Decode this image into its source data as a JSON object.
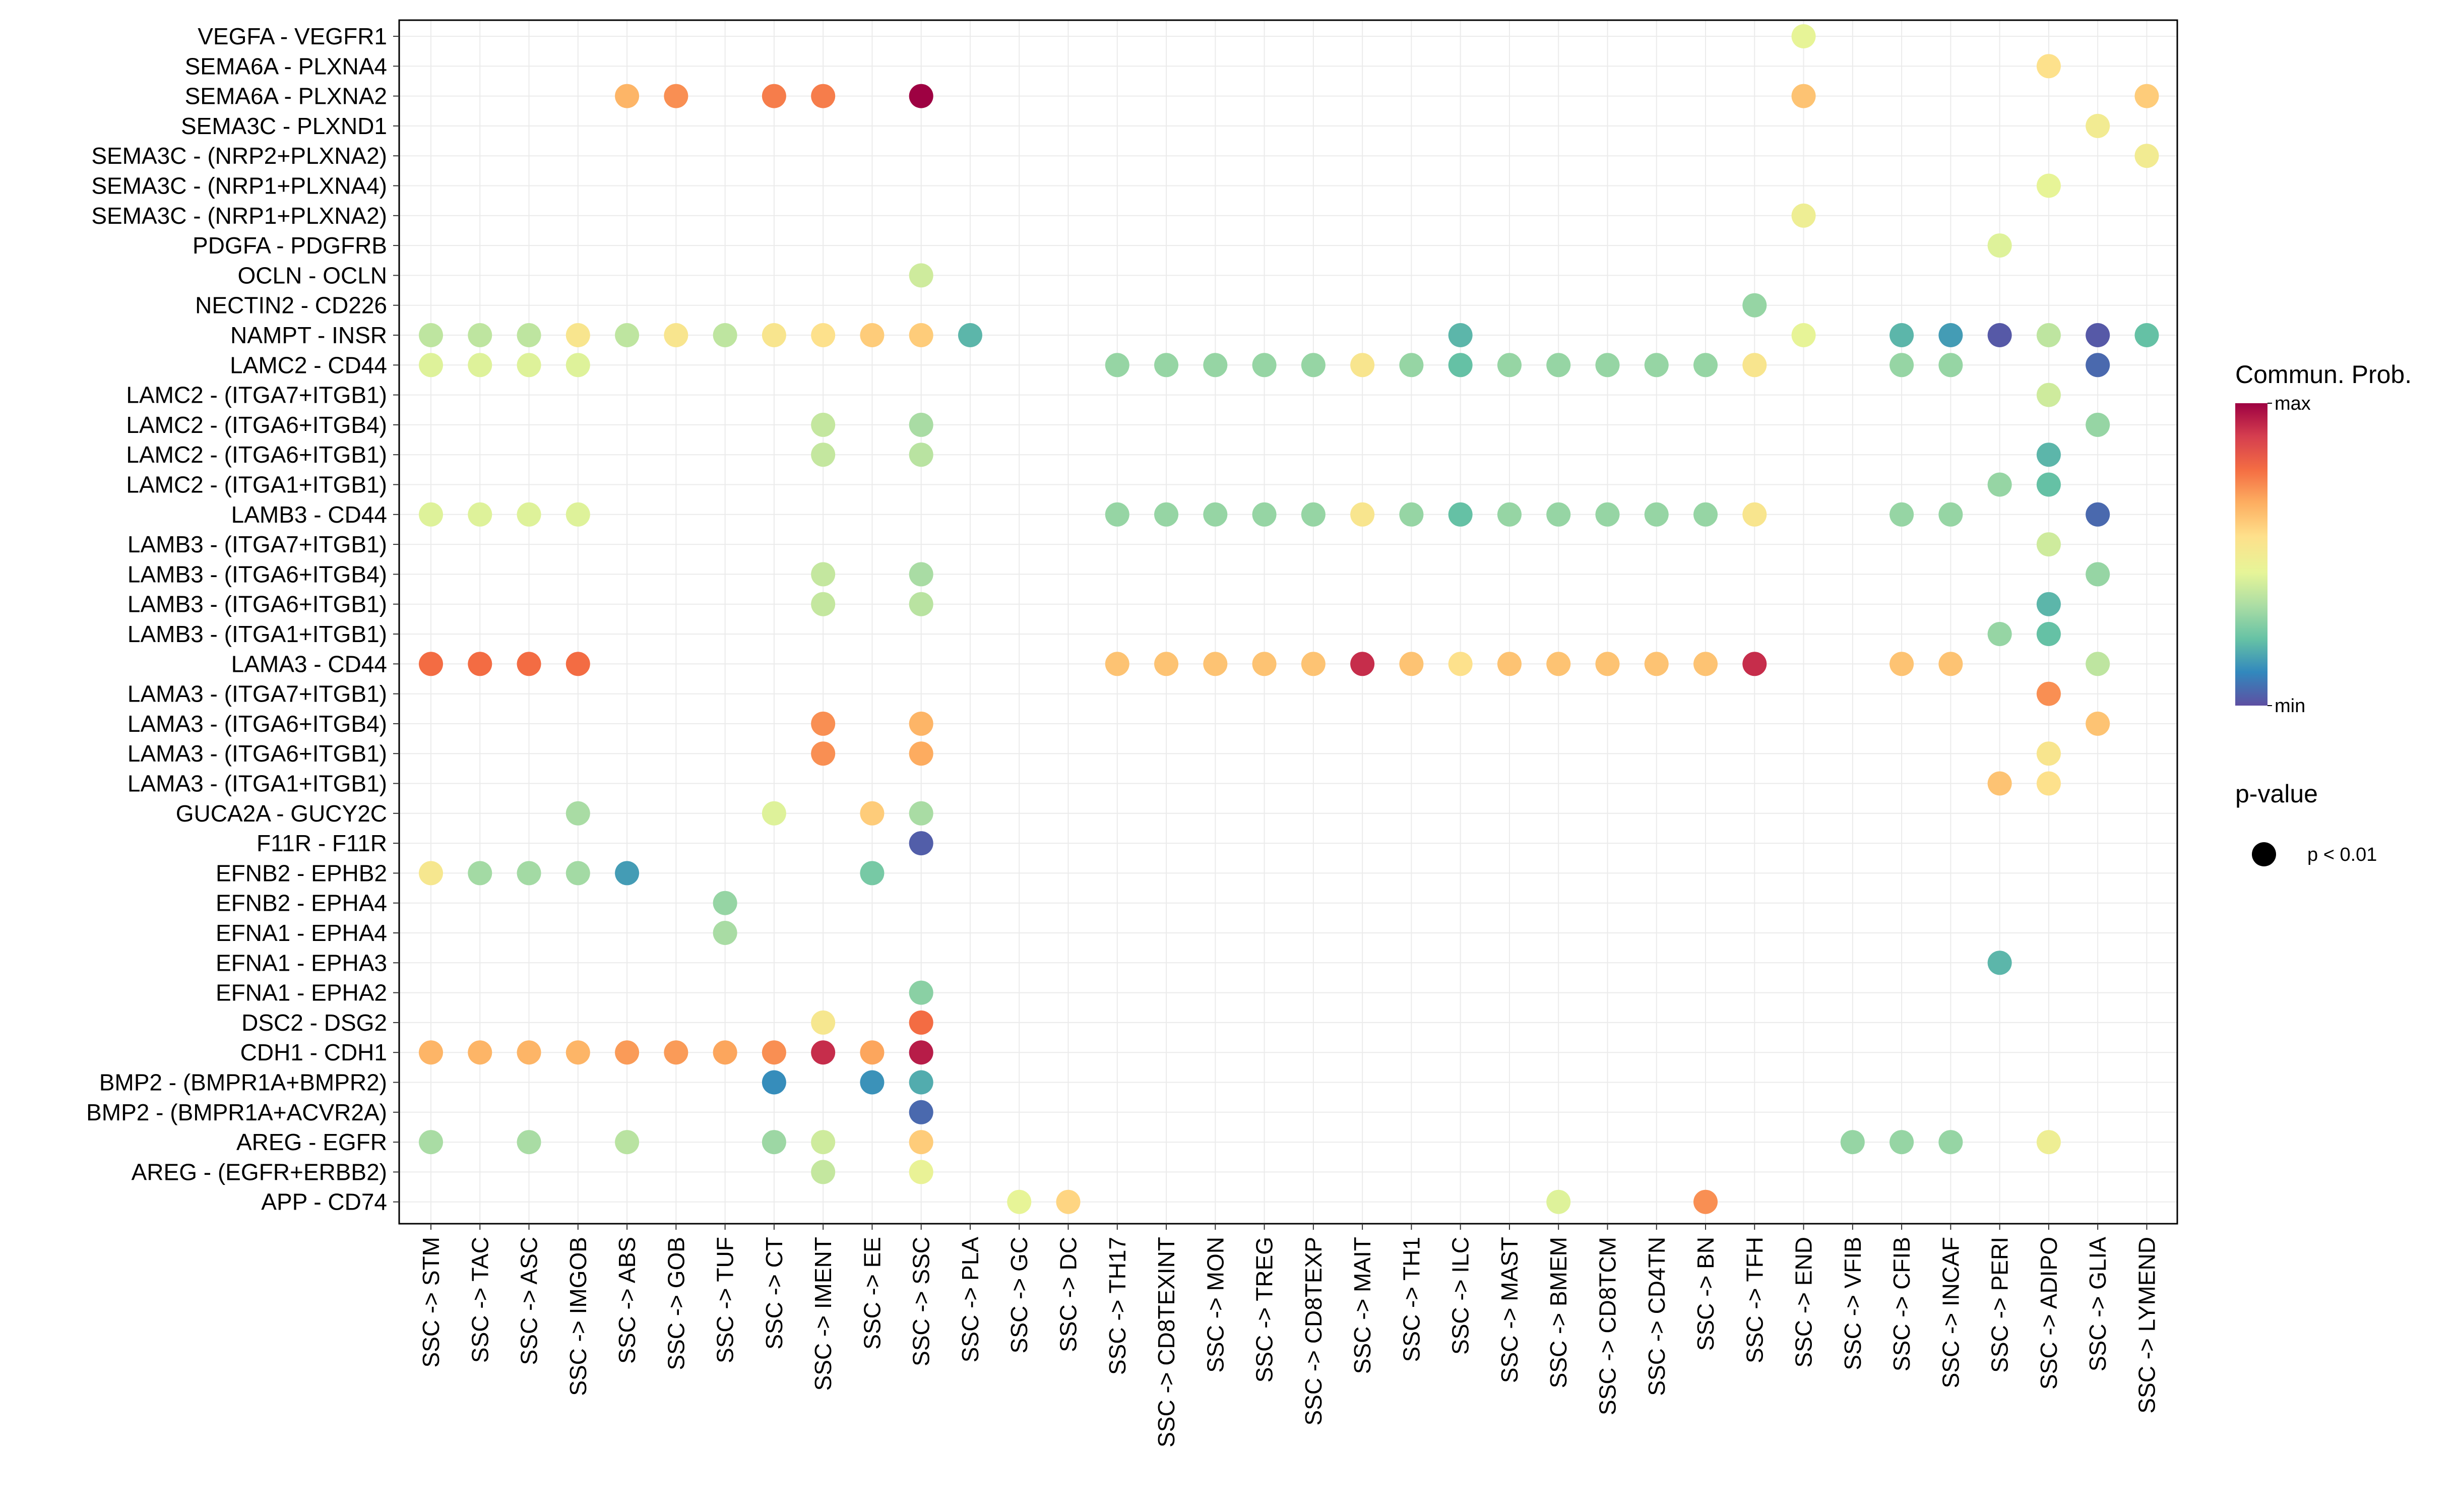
{
  "chart_data": {
    "type": "scatter",
    "subtype": "dot-plot",
    "x_categories": [
      "SSC -> STM",
      "SSC -> TAC",
      "SSC -> ASC",
      "SSC -> IMGOB",
      "SSC -> ABS",
      "SSC -> GOB",
      "SSC -> TUF",
      "SSC -> CT",
      "SSC -> IMENT",
      "SSC -> EE",
      "SSC -> SSC",
      "SSC -> PLA",
      "SSC -> GC",
      "SSC -> DC",
      "SSC -> TH17",
      "SSC -> CD8TEXINT",
      "SSC -> MON",
      "SSC -> TREG",
      "SSC -> CD8TEXP",
      "SSC -> MAIT",
      "SSC -> TH1",
      "SSC -> ILC",
      "SSC -> MAST",
      "SSC -> BMEM",
      "SSC -> CD8TCM",
      "SSC -> CD4TN",
      "SSC -> BN",
      "SSC -> TFH",
      "SSC -> END",
      "SSC -> VFIB",
      "SSC -> CFIB",
      "SSC -> INCAF",
      "SSC -> PERI",
      "SSC -> ADIPO",
      "SSC -> GLIA",
      "SSC -> LYMEND"
    ],
    "y_categories": [
      "VEGFA - VEGFR1",
      "SEMA6A - PLXNA4",
      "SEMA6A - PLXNA2",
      "SEMA3C - PLXND1",
      "SEMA3C - (NRP2+PLXNA2)",
      "SEMA3C - (NRP1+PLXNA4)",
      "SEMA3C - (NRP1+PLXNA2)",
      "PDGFA - PDGFRB",
      "OCLN - OCLN",
      "NECTIN2 - CD226",
      "NAMPT - INSR",
      "LAMC2 - CD44",
      "LAMC2 - (ITGA7+ITGB1)",
      "LAMC2 - (ITGA6+ITGB4)",
      "LAMC2 - (ITGA6+ITGB1)",
      "LAMC2 - (ITGA1+ITGB1)",
      "LAMB3 - CD44",
      "LAMB3 - (ITGA7+ITGB1)",
      "LAMB3 - (ITGA6+ITGB4)",
      "LAMB3 - (ITGA6+ITGB1)",
      "LAMB3 - (ITGA1+ITGB1)",
      "LAMA3 - CD44",
      "LAMA3 - (ITGA7+ITGB1)",
      "LAMA3 - (ITGA6+ITGB4)",
      "LAMA3 - (ITGA6+ITGB1)",
      "LAMA3 - (ITGA1+ITGB1)",
      "GUCA2A - GUCY2C",
      "F11R - F11R",
      "EFNB2 - EPHB2",
      "EFNB2 - EPHA4",
      "EFNA1 - EPHA4",
      "EFNA1 - EPHA3",
      "EFNA1 - EPHA2",
      "DSC2 - DSG2",
      "CDH1 - CDH1",
      "BMP2 - (BMPR1A+BMPR2)",
      "BMP2 - (BMPR1A+ACVR2A)",
      "AREG - EGFR",
      "AREG - (EGFR+ERBB2)",
      "APP - CD74"
    ],
    "value_scale": "relative communication probability, 0 = min, 1 = max",
    "points": [
      [
        "VEGFA - VEGFR1",
        "SSC -> END",
        0.45
      ],
      [
        "SEMA6A - PLXNA4",
        "SSC -> ADIPO",
        0.55
      ],
      [
        "SEMA6A - PLXNA2",
        "SSC -> ABS",
        0.65
      ],
      [
        "SEMA6A - PLXNA2",
        "SSC -> GOB",
        0.72
      ],
      [
        "SEMA6A - PLXNA2",
        "SSC -> CT",
        0.75
      ],
      [
        "SEMA6A - PLXNA2",
        "SSC -> IMENT",
        0.75
      ],
      [
        "SEMA6A - PLXNA2",
        "SSC -> SSC",
        1.0
      ],
      [
        "SEMA6A - PLXNA2",
        "SSC -> END",
        0.62
      ],
      [
        "SEMA6A - PLXNA2",
        "SSC -> LYMEND",
        0.6
      ],
      [
        "SEMA3C - PLXND1",
        "SSC -> GLIA",
        0.5
      ],
      [
        "SEMA3C - (NRP2+PLXNA2)",
        "SSC -> LYMEND",
        0.5
      ],
      [
        "SEMA3C - (NRP1+PLXNA4)",
        "SSC -> ADIPO",
        0.45
      ],
      [
        "SEMA3C - (NRP1+PLXNA2)",
        "SSC -> END",
        0.48
      ],
      [
        "PDGFA - PDGFRB",
        "SSC -> PERI",
        0.43
      ],
      [
        "OCLN - OCLN",
        "SSC -> SSC",
        0.4
      ],
      [
        "NECTIN2 - CD226",
        "SSC -> TFH",
        0.3
      ],
      [
        "NAMPT - INSR",
        "SSC -> STM",
        0.37
      ],
      [
        "NAMPT - INSR",
        "SSC -> TAC",
        0.37
      ],
      [
        "NAMPT - INSR",
        "SSC -> ASC",
        0.37
      ],
      [
        "NAMPT - INSR",
        "SSC -> IMGOB",
        0.53
      ],
      [
        "NAMPT - INSR",
        "SSC -> ABS",
        0.37
      ],
      [
        "NAMPT - INSR",
        "SSC -> GOB",
        0.53
      ],
      [
        "NAMPT - INSR",
        "SSC -> TUF",
        0.37
      ],
      [
        "NAMPT - INSR",
        "SSC -> CT",
        0.53
      ],
      [
        "NAMPT - INSR",
        "SSC -> IMENT",
        0.55
      ],
      [
        "NAMPT - INSR",
        "SSC -> EE",
        0.6
      ],
      [
        "NAMPT - INSR",
        "SSC -> SSC",
        0.6
      ],
      [
        "NAMPT - INSR",
        "SSC -> PLA",
        0.2
      ],
      [
        "NAMPT - INSR",
        "SSC -> ILC",
        0.2
      ],
      [
        "NAMPT - INSR",
        "SSC -> END",
        0.45
      ],
      [
        "NAMPT - INSR",
        "SSC -> CFIB",
        0.2
      ],
      [
        "NAMPT - INSR",
        "SSC -> INCAF",
        0.15
      ],
      [
        "NAMPT - INSR",
        "SSC -> PERI",
        0.02
      ],
      [
        "NAMPT - INSR",
        "SSC -> ADIPO",
        0.37
      ],
      [
        "NAMPT - INSR",
        "SSC -> GLIA",
        0.02
      ],
      [
        "NAMPT - INSR",
        "SSC -> LYMEND",
        0.22
      ],
      [
        "LAMC2 - CD44",
        "SSC -> STM",
        0.43
      ],
      [
        "LAMC2 - CD44",
        "SSC -> TAC",
        0.43
      ],
      [
        "LAMC2 - CD44",
        "SSC -> ASC",
        0.43
      ],
      [
        "LAMC2 - CD44",
        "SSC -> IMGOB",
        0.43
      ],
      [
        "LAMC2 - CD44",
        "SSC -> TH17",
        0.3
      ],
      [
        "LAMC2 - CD44",
        "SSC -> CD8TEXINT",
        0.3
      ],
      [
        "LAMC2 - CD44",
        "SSC -> MON",
        0.3
      ],
      [
        "LAMC2 - CD44",
        "SSC -> TREG",
        0.3
      ],
      [
        "LAMC2 - CD44",
        "SSC -> CD8TEXP",
        0.3
      ],
      [
        "LAMC2 - CD44",
        "SSC -> MAIT",
        0.53
      ],
      [
        "LAMC2 - CD44",
        "SSC -> TH1",
        0.3
      ],
      [
        "LAMC2 - CD44",
        "SSC -> ILC",
        0.22
      ],
      [
        "LAMC2 - CD44",
        "SSC -> MAST",
        0.3
      ],
      [
        "LAMC2 - CD44",
        "SSC -> BMEM",
        0.3
      ],
      [
        "LAMC2 - CD44",
        "SSC -> CD8TCM",
        0.3
      ],
      [
        "LAMC2 - CD44",
        "SSC -> CD4TN",
        0.3
      ],
      [
        "LAMC2 - CD44",
        "SSC -> BN",
        0.3
      ],
      [
        "LAMC2 - CD44",
        "SSC -> TFH",
        0.53
      ],
      [
        "LAMC2 - CD44",
        "SSC -> CFIB",
        0.3
      ],
      [
        "LAMC2 - CD44",
        "SSC -> INCAF",
        0.3
      ],
      [
        "LAMC2 - CD44",
        "SSC -> GLIA",
        0.05
      ],
      [
        "LAMC2 - (ITGA7+ITGB1)",
        "SSC -> ADIPO",
        0.4
      ],
      [
        "LAMC2 - (ITGA6+ITGB4)",
        "SSC -> IMENT",
        0.38
      ],
      [
        "LAMC2 - (ITGA6+ITGB4)",
        "SSC -> SSC",
        0.33
      ],
      [
        "LAMC2 - (ITGA6+ITGB4)",
        "SSC -> GLIA",
        0.3
      ],
      [
        "LAMC2 - (ITGA6+ITGB1)",
        "SSC -> IMENT",
        0.38
      ],
      [
        "LAMC2 - (ITGA6+ITGB1)",
        "SSC -> SSC",
        0.36
      ],
      [
        "LAMC2 - (ITGA6+ITGB1)",
        "SSC -> ADIPO",
        0.2
      ],
      [
        "LAMC2 - (ITGA1+ITGB1)",
        "SSC -> PERI",
        0.3
      ],
      [
        "LAMC2 - (ITGA1+ITGB1)",
        "SSC -> ADIPO",
        0.22
      ],
      [
        "LAMB3 - CD44",
        "SSC -> STM",
        0.43
      ],
      [
        "LAMB3 - CD44",
        "SSC -> TAC",
        0.43
      ],
      [
        "LAMB3 - CD44",
        "SSC -> ASC",
        0.43
      ],
      [
        "LAMB3 - CD44",
        "SSC -> IMGOB",
        0.43
      ],
      [
        "LAMB3 - CD44",
        "SSC -> TH17",
        0.3
      ],
      [
        "LAMB3 - CD44",
        "SSC -> CD8TEXINT",
        0.3
      ],
      [
        "LAMB3 - CD44",
        "SSC -> MON",
        0.3
      ],
      [
        "LAMB3 - CD44",
        "SSC -> TREG",
        0.3
      ],
      [
        "LAMB3 - CD44",
        "SSC -> CD8TEXP",
        0.3
      ],
      [
        "LAMB3 - CD44",
        "SSC -> MAIT",
        0.53
      ],
      [
        "LAMB3 - CD44",
        "SSC -> TH1",
        0.3
      ],
      [
        "LAMB3 - CD44",
        "SSC -> ILC",
        0.22
      ],
      [
        "LAMB3 - CD44",
        "SSC -> MAST",
        0.3
      ],
      [
        "LAMB3 - CD44",
        "SSC -> BMEM",
        0.3
      ],
      [
        "LAMB3 - CD44",
        "SSC -> CD8TCM",
        0.3
      ],
      [
        "LAMB3 - CD44",
        "SSC -> CD4TN",
        0.3
      ],
      [
        "LAMB3 - CD44",
        "SSC -> BN",
        0.3
      ],
      [
        "LAMB3 - CD44",
        "SSC -> TFH",
        0.53
      ],
      [
        "LAMB3 - CD44",
        "SSC -> CFIB",
        0.3
      ],
      [
        "LAMB3 - CD44",
        "SSC -> INCAF",
        0.3
      ],
      [
        "LAMB3 - CD44",
        "SSC -> GLIA",
        0.05
      ],
      [
        "LAMB3 - (ITGA7+ITGB1)",
        "SSC -> ADIPO",
        0.4
      ],
      [
        "LAMB3 - (ITGA6+ITGB4)",
        "SSC -> IMENT",
        0.38
      ],
      [
        "LAMB3 - (ITGA6+ITGB4)",
        "SSC -> SSC",
        0.33
      ],
      [
        "LAMB3 - (ITGA6+ITGB4)",
        "SSC -> GLIA",
        0.3
      ],
      [
        "LAMB3 - (ITGA6+ITGB1)",
        "SSC -> IMENT",
        0.38
      ],
      [
        "LAMB3 - (ITGA6+ITGB1)",
        "SSC -> SSC",
        0.36
      ],
      [
        "LAMB3 - (ITGA6+ITGB1)",
        "SSC -> ADIPO",
        0.2
      ],
      [
        "LAMB3 - (ITGA1+ITGB1)",
        "SSC -> PERI",
        0.3
      ],
      [
        "LAMB3 - (ITGA1+ITGB1)",
        "SSC -> ADIPO",
        0.22
      ],
      [
        "LAMA3 - CD44",
        "SSC -> STM",
        0.78
      ],
      [
        "LAMA3 - CD44",
        "SSC -> TAC",
        0.78
      ],
      [
        "LAMA3 - CD44",
        "SSC -> ASC",
        0.78
      ],
      [
        "LAMA3 - CD44",
        "SSC -> IMGOB",
        0.78
      ],
      [
        "LAMA3 - CD44",
        "SSC -> TH17",
        0.62
      ],
      [
        "LAMA3 - CD44",
        "SSC -> CD8TEXINT",
        0.62
      ],
      [
        "LAMA3 - CD44",
        "SSC -> MON",
        0.62
      ],
      [
        "LAMA3 - CD44",
        "SSC -> TREG",
        0.62
      ],
      [
        "LAMA3 - CD44",
        "SSC -> CD8TEXP",
        0.62
      ],
      [
        "LAMA3 - CD44",
        "SSC -> MAIT",
        0.92
      ],
      [
        "LAMA3 - CD44",
        "SSC -> TH1",
        0.62
      ],
      [
        "LAMA3 - CD44",
        "SSC -> ILC",
        0.55
      ],
      [
        "LAMA3 - CD44",
        "SSC -> MAST",
        0.62
      ],
      [
        "LAMA3 - CD44",
        "SSC -> BMEM",
        0.62
      ],
      [
        "LAMA3 - CD44",
        "SSC -> CD8TCM",
        0.62
      ],
      [
        "LAMA3 - CD44",
        "SSC -> CD4TN",
        0.62
      ],
      [
        "LAMA3 - CD44",
        "SSC -> BN",
        0.62
      ],
      [
        "LAMA3 - CD44",
        "SSC -> TFH",
        0.92
      ],
      [
        "LAMA3 - CD44",
        "SSC -> CFIB",
        0.62
      ],
      [
        "LAMA3 - CD44",
        "SSC -> INCAF",
        0.62
      ],
      [
        "LAMA3 - CD44",
        "SSC -> GLIA",
        0.37
      ],
      [
        "LAMA3 - (ITGA7+ITGB1)",
        "SSC -> ADIPO",
        0.72
      ],
      [
        "LAMA3 - (ITGA6+ITGB4)",
        "SSC -> IMENT",
        0.72
      ],
      [
        "LAMA3 - (ITGA6+ITGB4)",
        "SSC -> SSC",
        0.65
      ],
      [
        "LAMA3 - (ITGA6+ITGB4)",
        "SSC -> GLIA",
        0.62
      ],
      [
        "LAMA3 - (ITGA6+ITGB1)",
        "SSC -> IMENT",
        0.72
      ],
      [
        "LAMA3 - (ITGA6+ITGB1)",
        "SSC -> SSC",
        0.67
      ],
      [
        "LAMA3 - (ITGA6+ITGB1)",
        "SSC -> ADIPO",
        0.53
      ],
      [
        "LAMA3 - (ITGA1+ITGB1)",
        "SSC -> PERI",
        0.62
      ],
      [
        "LAMA3 - (ITGA1+ITGB1)",
        "SSC -> ADIPO",
        0.55
      ],
      [
        "GUCA2A - GUCY2C",
        "SSC -> IMGOB",
        0.33
      ],
      [
        "GUCA2A - GUCY2C",
        "SSC -> CT",
        0.43
      ],
      [
        "GUCA2A - GUCY2C",
        "SSC -> EE",
        0.6
      ],
      [
        "GUCA2A - GUCY2C",
        "SSC -> SSC",
        0.33
      ],
      [
        "F11R - F11R",
        "SSC -> SSC",
        0.03
      ],
      [
        "EFNB2 - EPHB2",
        "SSC -> STM",
        0.52
      ],
      [
        "EFNB2 - EPHB2",
        "SSC -> TAC",
        0.32
      ],
      [
        "EFNB2 - EPHB2",
        "SSC -> ASC",
        0.32
      ],
      [
        "EFNB2 - EPHB2",
        "SSC -> IMGOB",
        0.32
      ],
      [
        "EFNB2 - EPHB2",
        "SSC -> ABS",
        0.15
      ],
      [
        "EFNB2 - EPHB2",
        "SSC -> EE",
        0.25
      ],
      [
        "EFNB2 - EPHA4",
        "SSC -> TUF",
        0.3
      ],
      [
        "EFNA1 - EPHA4",
        "SSC -> TUF",
        0.33
      ],
      [
        "EFNA1 - EPHA3",
        "SSC -> PERI",
        0.2
      ],
      [
        "EFNA1 - EPHA2",
        "SSC -> SSC",
        0.28
      ],
      [
        "DSC2 - DSG2",
        "SSC -> IMENT",
        0.52
      ],
      [
        "DSC2 - DSG2",
        "SSC -> SSC",
        0.78
      ],
      [
        "CDH1 - CDH1",
        "SSC -> STM",
        0.65
      ],
      [
        "CDH1 - CDH1",
        "SSC -> TAC",
        0.65
      ],
      [
        "CDH1 - CDH1",
        "SSC -> ASC",
        0.65
      ],
      [
        "CDH1 - CDH1",
        "SSC -> IMGOB",
        0.65
      ],
      [
        "CDH1 - CDH1",
        "SSC -> ABS",
        0.7
      ],
      [
        "CDH1 - CDH1",
        "SSC -> GOB",
        0.7
      ],
      [
        "CDH1 - CDH1",
        "SSC -> TUF",
        0.68
      ],
      [
        "CDH1 - CDH1",
        "SSC -> CT",
        0.72
      ],
      [
        "CDH1 - CDH1",
        "SSC -> IMENT",
        0.92
      ],
      [
        "CDH1 - CDH1",
        "SSC -> EE",
        0.68
      ],
      [
        "CDH1 - CDH1",
        "SSC -> SSC",
        0.95
      ],
      [
        "BMP2 - (BMPR1A+BMPR2)",
        "SSC -> CT",
        0.12
      ],
      [
        "BMP2 - (BMPR1A+BMPR2)",
        "SSC -> EE",
        0.13
      ],
      [
        "BMP2 - (BMPR1A+BMPR2)",
        "SSC -> SSC",
        0.18
      ],
      [
        "BMP2 - (BMPR1A+ACVR2A)",
        "SSC -> SSC",
        0.05
      ],
      [
        "AREG - EGFR",
        "SSC -> STM",
        0.33
      ],
      [
        "AREG - EGFR",
        "SSC -> ASC",
        0.33
      ],
      [
        "AREG - EGFR",
        "SSC -> ABS",
        0.36
      ],
      [
        "AREG - EGFR",
        "SSC -> CT",
        0.31
      ],
      [
        "AREG - EGFR",
        "SSC -> IMENT",
        0.4
      ],
      [
        "AREG - EGFR",
        "SSC -> SSC",
        0.6
      ],
      [
        "AREG - EGFR",
        "SSC -> VFIB",
        0.3
      ],
      [
        "AREG - EGFR",
        "SSC -> CFIB",
        0.3
      ],
      [
        "AREG - EGFR",
        "SSC -> INCAF",
        0.3
      ],
      [
        "AREG - EGFR",
        "SSC -> ADIPO",
        0.48
      ],
      [
        "AREG - (EGFR+ERBB2)",
        "SSC -> IMENT",
        0.38
      ],
      [
        "AREG - (EGFR+ERBB2)",
        "SSC -> SSC",
        0.46
      ],
      [
        "APP - CD74",
        "SSC -> GC",
        0.45
      ],
      [
        "APP - CD74",
        "SSC -> DC",
        0.58
      ],
      [
        "APP - CD74",
        "SSC -> BMEM",
        0.43
      ],
      [
        "APP - CD74",
        "SSC -> BN",
        0.72
      ]
    ],
    "color_scale": [
      "#5e4fa2",
      "#3288bd",
      "#66c2a5",
      "#abdda4",
      "#e6f598",
      "#fee08b",
      "#fdae61",
      "#f46d43",
      "#d53e4f",
      "#9e0142"
    ],
    "legend": {
      "color_title": "Commun. Prob.",
      "color_max_label": "max",
      "color_min_label": "min",
      "size_title": "p-value",
      "size_label": "p < 0.01",
      "placement": "right"
    },
    "grid": true,
    "xlabel": "",
    "ylabel": ""
  }
}
